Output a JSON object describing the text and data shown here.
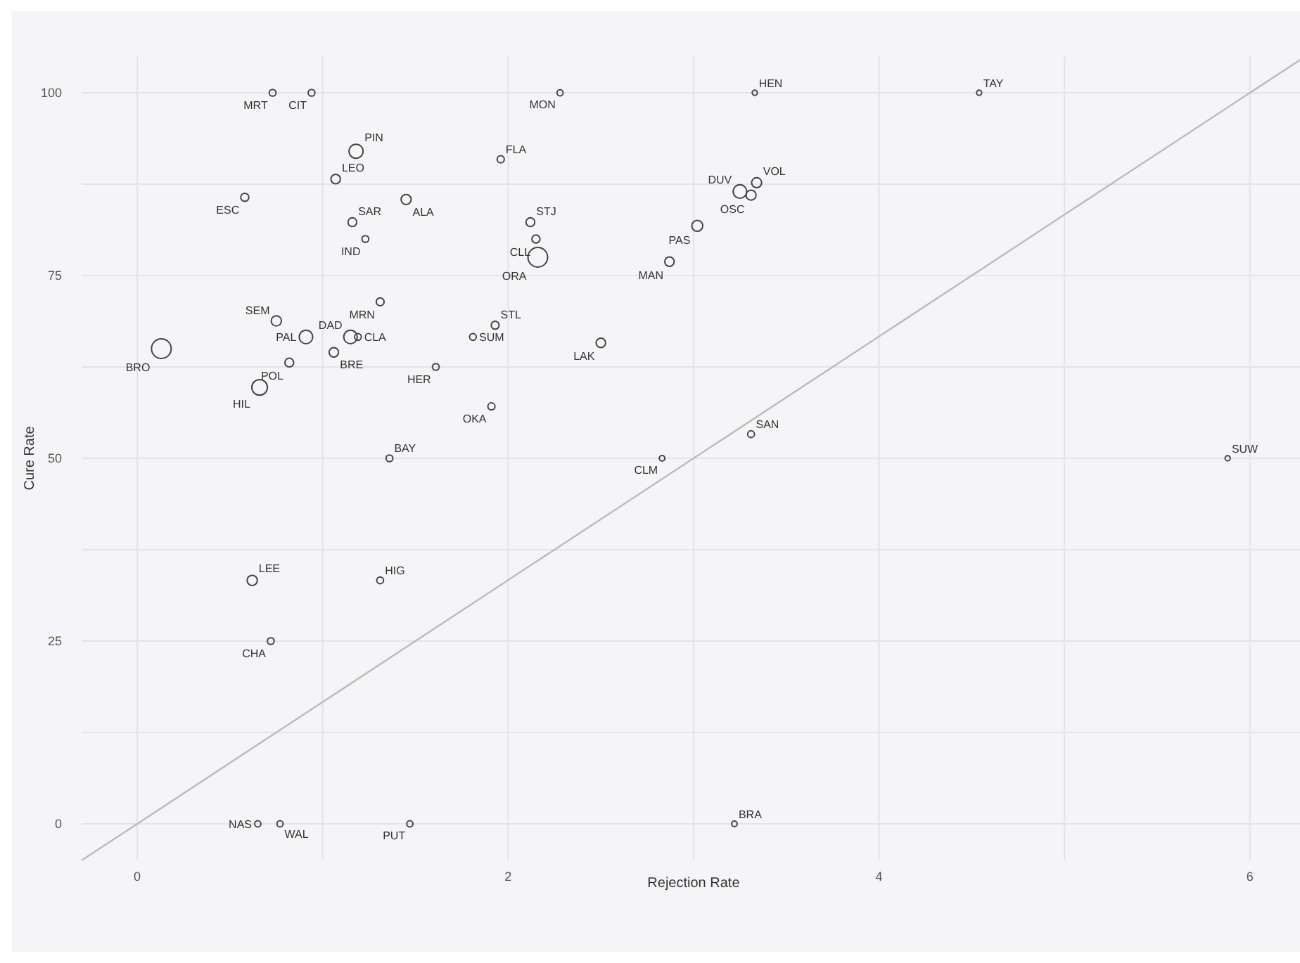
{
  "chart_data": {
    "type": "bubble",
    "xlabel": "Rejection Rate",
    "ylabel": "Cure Rate",
    "xlim": [
      -0.3,
      6.27
    ],
    "ylim": [
      -5,
      105
    ],
    "xticks": [
      0,
      {
        "value": 1,
        "label": null
      },
      2,
      {
        "value": 3,
        "label": null
      },
      4,
      {
        "value": 5,
        "label": null
      },
      6
    ],
    "yticks": [
      0,
      {
        "value": 12.5,
        "label": null
      },
      25,
      {
        "value": 37.5,
        "label": null
      },
      50,
      {
        "value": 62.5,
        "label": null
      },
      75,
      {
        "value": 87.5,
        "label": null
      },
      100
    ],
    "grid": true,
    "marker": "circle",
    "series": [
      {
        "type": "line",
        "color": "#bbbbbb",
        "line_style": "solid",
        "marker": "none",
        "x": [
          -0.3,
          6.27
        ],
        "values": [
          -5,
          104.5
        ]
      },
      {
        "type": "bubble",
        "color": "#444444",
        "x": [
          0.73,
          0.94,
          2.28,
          3.33,
          4.54,
          1.18,
          1.07,
          1.96,
          0.58,
          1.45,
          1.16,
          1.23,
          2.12,
          2.15,
          2.16,
          2.87,
          3.02,
          3.25,
          3.31,
          3.34,
          1.31,
          0.75,
          0.91,
          1.15,
          1.19,
          1.06,
          0.13,
          0.82,
          0.66,
          1.93,
          1.81,
          1.61,
          1.91,
          1.36,
          2.5,
          2.83,
          3.31,
          5.88,
          0.62,
          1.31,
          0.72,
          0.65,
          0.77,
          1.47,
          3.22
        ],
        "values": [
          100,
          100,
          100,
          100,
          100,
          92,
          88.2,
          90.9,
          85.7,
          85.4,
          82.3,
          80,
          82.3,
          80,
          77.5,
          76.9,
          81.8,
          86.5,
          86,
          87.7,
          71.4,
          68.8,
          66.6,
          66.6,
          66.6,
          64.5,
          65,
          63.1,
          59.7,
          68.2,
          66.6,
          62.5,
          57.1,
          50,
          65.8,
          50,
          53.3,
          50,
          33.3,
          33.3,
          25,
          0,
          0,
          0,
          0
        ],
        "sizes": [
          0.12,
          0.12,
          0.1,
          0.07,
          0.07,
          0.51,
          0.23,
          0.13,
          0.17,
          0.26,
          0.2,
          0.12,
          0.2,
          0.17,
          1,
          0.23,
          0.31,
          0.47,
          0.26,
          0.26,
          0.16,
          0.27,
          0.47,
          0.47,
          0.12,
          0.23,
          1,
          0.2,
          0.63,
          0.16,
          0.12,
          0.12,
          0.13,
          0.12,
          0.23,
          0.08,
          0.12,
          0.07,
          0.27,
          0.12,
          0.12,
          0.1,
          0.1,
          0.1,
          0.08
        ],
        "value_labels": [
          "MRT",
          "CIT",
          "MON",
          "HEN",
          "TAY",
          "PIN",
          "LEO",
          "FLA",
          "ESC",
          "ALA",
          "SAR",
          "IND",
          "STJ",
          "CLL",
          "ORA",
          "MAN",
          "PAS",
          "DUV",
          "OSC",
          "VOL",
          "MRN",
          "SEM",
          "PAL",
          "DAD",
          "CLA",
          "BRE",
          "BRO",
          "POL",
          "HIL",
          "STL",
          "SUM",
          "HER",
          "OKA",
          "BAY",
          "LAK",
          "CLM",
          "SAN",
          "SUW",
          "LEE",
          "HIG",
          "CHA",
          "NAS",
          "WAL",
          "PUT",
          "BRA"
        ]
      }
    ]
  }
}
